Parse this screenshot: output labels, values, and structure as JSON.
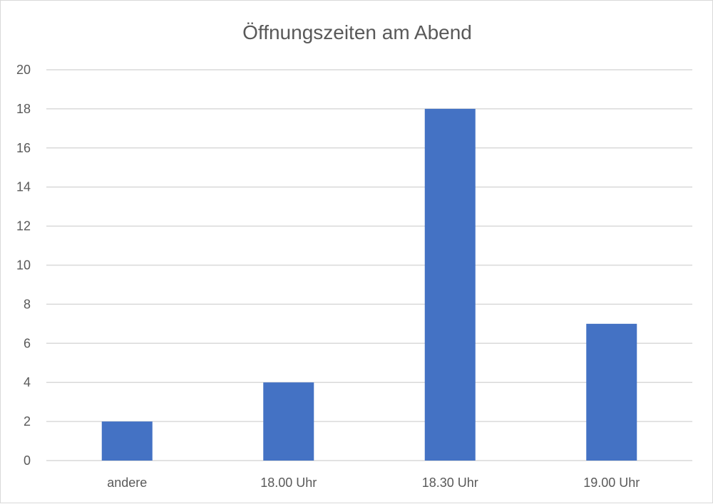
{
  "chart_data": {
    "type": "bar",
    "title": "Öffnungszeiten am Abend",
    "categories": [
      "andere",
      "18.00 Uhr",
      "18.30 Uhr",
      "19.00 Uhr"
    ],
    "values": [
      2,
      4,
      18,
      7
    ],
    "xlabel": "",
    "ylabel": "",
    "ylim": [
      0,
      20
    ],
    "ytick_step": 2,
    "grid": true,
    "legend": "none",
    "bar_color": "#4472c4"
  }
}
